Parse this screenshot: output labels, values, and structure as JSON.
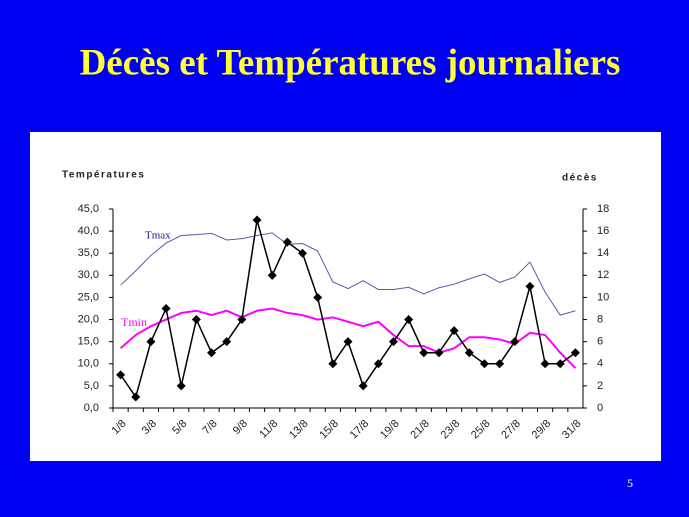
{
  "chart_data": {
    "type": "line",
    "title": "Décès et Températures journaliers",
    "y_label": "Températures",
    "y2_label": "décès",
    "categories": [
      "1/8",
      null,
      "3/8",
      null,
      "5/8",
      null,
      "7/8",
      null,
      "9/8",
      null,
      "11/8",
      null,
      "13/8",
      null,
      "15/8",
      null,
      "17/8",
      null,
      "19/8",
      null,
      "21/8",
      null,
      "23/8",
      null,
      "25/8",
      null,
      "27/8",
      null,
      "29/8",
      null,
      "31/8"
    ],
    "series": [
      {
        "name": "Tmax",
        "color": "#5a5aa8",
        "values": [
          27.8,
          31,
          34.5,
          37.3,
          39,
          39.2,
          39.5,
          38,
          38.3,
          39,
          39.6,
          37,
          37.2,
          35.5,
          28.5,
          27,
          28.8,
          26.8,
          26.8,
          27.3,
          25.8,
          27.2,
          28,
          29.2,
          30.3,
          28.4,
          29.6,
          33,
          26.2,
          21,
          22
        ]
      },
      {
        "name": "Tmin",
        "color": "#ff00ff",
        "values": [
          13.5,
          16.5,
          18.5,
          20,
          21.5,
          22,
          21,
          22,
          20.5,
          22,
          22.5,
          21.5,
          21,
          20,
          20.5,
          19.5,
          18.5,
          19.5,
          16.5,
          14,
          14,
          12.5,
          13.5,
          16,
          16,
          15.5,
          14.5,
          17,
          16.5,
          12.5,
          9
        ]
      },
      {
        "name": "décès",
        "color": "#000000",
        "axis": "y2",
        "values": [
          3,
          1,
          6,
          9,
          2,
          8,
          5,
          6,
          8,
          17,
          12,
          15,
          14,
          10,
          4,
          6,
          2,
          4,
          6,
          8,
          5,
          5,
          7,
          5,
          4,
          4,
          6,
          11,
          4,
          4,
          5
        ]
      }
    ],
    "ylim": [
      0,
      45
    ],
    "yticks": [
      {
        "value": 0,
        "label": "0,0"
      },
      {
        "value": 5,
        "label": "5,0"
      },
      {
        "value": 10,
        "label": "10,0"
      },
      {
        "value": 15,
        "label": "15,0"
      },
      {
        "value": 20,
        "label": "20,0"
      },
      {
        "value": 25,
        "label": "25,0"
      },
      {
        "value": 30,
        "label": "30,0"
      },
      {
        "value": 35,
        "label": "35,0"
      },
      {
        "value": 40,
        "label": "40,0"
      },
      {
        "value": 45,
        "label": "45,0"
      }
    ],
    "y2lim": [
      0,
      18
    ],
    "y2ticks": [
      0,
      2,
      4,
      6,
      8,
      10,
      12,
      14,
      16,
      18
    ],
    "grid": false
  },
  "page_number": "5"
}
